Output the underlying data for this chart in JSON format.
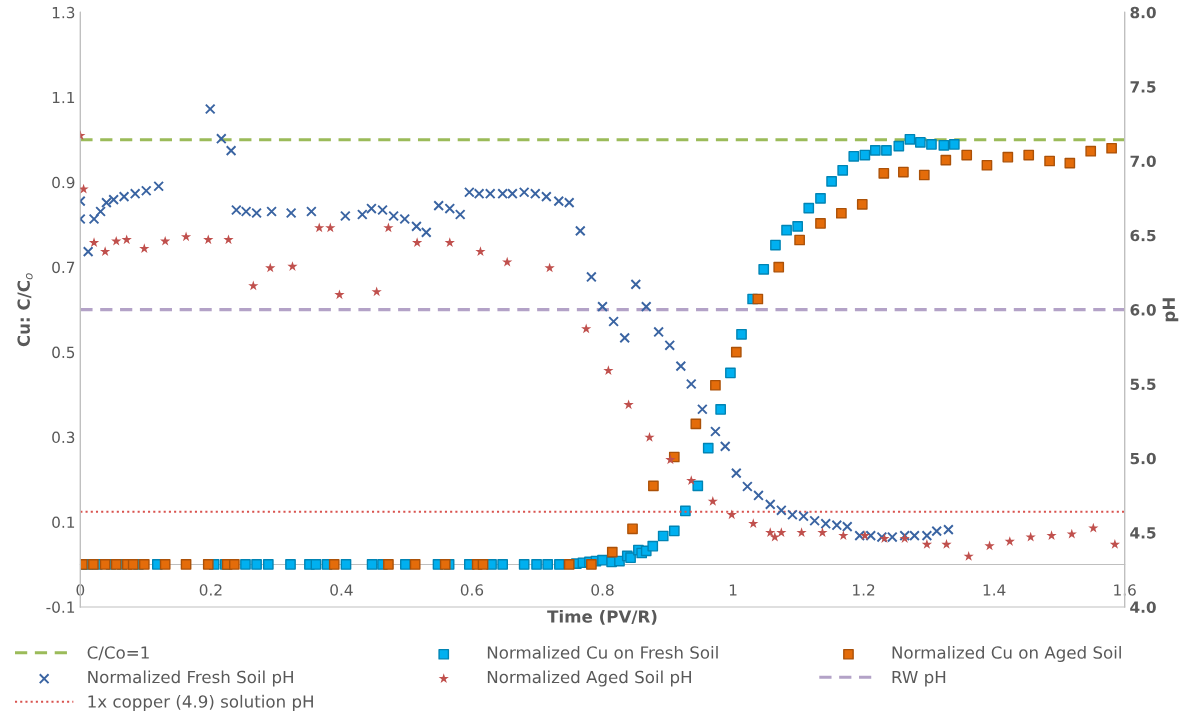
{
  "chart_data": {
    "type": "scatter",
    "xlabel": "Time (PV/R)",
    "ylabel": "Cu: C/C$_{o}$",
    "y2label": "pH",
    "xlim": [
      0,
      1.6
    ],
    "xticks": [
      0,
      0.2,
      0.4,
      0.6,
      0.8,
      1,
      1.2,
      1.4,
      1.6
    ],
    "ylim": [
      -0.1,
      1.3
    ],
    "yticks": [
      -0.1,
      0.1,
      0.3,
      0.5,
      0.7,
      0.9,
      1.1,
      1.3
    ],
    "y2lim": [
      4,
      8
    ],
    "y2ticks": [
      {
        "value": 4,
        "label": "4.0"
      },
      {
        "value": 4.5,
        "label": "4.5"
      },
      {
        "value": 5,
        "label": "5.0"
      },
      {
        "value": 5.5,
        "label": "5.5"
      },
      {
        "value": 6,
        "label": "6.0"
      },
      {
        "value": 6.5,
        "label": "6.5"
      },
      {
        "value": 7,
        "label": "7.0"
      },
      {
        "value": 7.5,
        "label": "7.5"
      },
      {
        "value": 8,
        "label": "8.0"
      }
    ],
    "grid": false,
    "legend": "bottom",
    "series": [
      {
        "name": "C/Co=1",
        "type": "line",
        "line_style": "dashed",
        "marker": "none",
        "color": "#9bbb59",
        "x": [
          0,
          1.6
        ],
        "values": [
          1,
          1
        ]
      },
      {
        "name": "Normalized Cu on Fresh Soil",
        "marker": "square",
        "color": "#00b0f0",
        "x": [
          0.003,
          0.011,
          0.026,
          0.047,
          0.064,
          0.089,
          0.118,
          0.205,
          0.222,
          0.253,
          0.27,
          0.288,
          0.322,
          0.351,
          0.361,
          0.378,
          0.407,
          0.447,
          0.463,
          0.498,
          0.548,
          0.565,
          0.596,
          0.63,
          0.647,
          0.68,
          0.699,
          0.716,
          0.734,
          0.76,
          0.77,
          0.78,
          0.79,
          0.8,
          0.814,
          0.826,
          0.838,
          0.843,
          0.855,
          0.86,
          0.867,
          0.877,
          0.893,
          0.91,
          0.927,
          0.946,
          0.962,
          0.981,
          0.996,
          1.013,
          1.03,
          1.047,
          1.065,
          1.082,
          1.099,
          1.116,
          1.134,
          1.151,
          1.168,
          1.185,
          1.202,
          1.218,
          1.235,
          1.254,
          1.271,
          1.287,
          1.304,
          1.323,
          1.339
        ],
        "values": [
          0,
          0,
          0,
          0,
          0,
          0,
          0,
          0,
          0,
          0,
          0,
          0,
          0,
          0,
          0,
          0,
          0,
          0,
          0,
          0,
          0,
          0,
          0,
          0,
          0,
          0,
          0,
          0,
          0,
          0.002,
          0.004,
          0.006,
          0.008,
          0.01,
          0.006,
          0.008,
          0.02,
          0.016,
          0.034,
          0.027,
          0.032,
          0.043,
          0.067,
          0.079,
          0.126,
          0.185,
          0.274,
          0.365,
          0.451,
          0.542,
          0.625,
          0.695,
          0.752,
          0.787,
          0.796,
          0.839,
          0.862,
          0.902,
          0.928,
          0.961,
          0.964,
          0.975,
          0.975,
          0.985,
          1.001,
          0.994,
          0.989,
          0.987,
          0.989
        ]
      },
      {
        "name": "Normalized Cu on Aged Soil",
        "marker": "square",
        "color": "#e46c0a",
        "x": [
          0.003,
          0.02,
          0.038,
          0.055,
          0.072,
          0.081,
          0.098,
          0.13,
          0.162,
          0.196,
          0.225,
          0.236,
          0.389,
          0.472,
          0.513,
          0.559,
          0.608,
          0.617,
          0.749,
          0.783,
          0.815,
          0.846,
          0.878,
          0.91,
          0.943,
          0.973,
          1.005,
          1.038,
          1.07,
          1.102,
          1.134,
          1.166,
          1.198,
          1.231,
          1.261,
          1.293,
          1.326,
          1.358,
          1.389,
          1.421,
          1.453,
          1.485,
          1.516,
          1.548,
          1.58
        ],
        "values": [
          0,
          0,
          0,
          0,
          0,
          0,
          0,
          0,
          0,
          0,
          0,
          0,
          0,
          0,
          0,
          0,
          0,
          0,
          0,
          0,
          0.029,
          0.084,
          0.185,
          0.253,
          0.331,
          0.422,
          0.5,
          0.625,
          0.7,
          0.764,
          0.803,
          0.827,
          0.848,
          0.921,
          0.924,
          0.917,
          0.952,
          0.964,
          0.94,
          0.959,
          0.964,
          0.95,
          0.945,
          0.973,
          0.98
        ]
      },
      {
        "name": "Normalized Fresh Soil pH",
        "axis": "y2",
        "marker": "cross",
        "color": "#3a64a2",
        "x": [
          0,
          0,
          0.012,
          0.021,
          0.031,
          0.04,
          0.051,
          0.067,
          0.084,
          0.101,
          0.12,
          0.199,
          0.216,
          0.231,
          0.239,
          0.254,
          0.27,
          0.293,
          0.323,
          0.354,
          0.406,
          0.432,
          0.446,
          0.463,
          0.48,
          0.497,
          0.515,
          0.53,
          0.549,
          0.566,
          0.582,
          0.596,
          0.611,
          0.628,
          0.647,
          0.662,
          0.68,
          0.697,
          0.714,
          0.733,
          0.749,
          0.766,
          0.783,
          0.8,
          0.817,
          0.834,
          0.851,
          0.867,
          0.886,
          0.903,
          0.92,
          0.936,
          0.953,
          0.973,
          0.988,
          1.005,
          1.022,
          1.039,
          1.057,
          1.074,
          1.091,
          1.108,
          1.125,
          1.142,
          1.159,
          1.175,
          1.194,
          1.211,
          1.228,
          1.244,
          1.263,
          1.278,
          1.297,
          1.312,
          1.33
        ],
        "values": [
          6.73,
          6.61,
          6.39,
          6.61,
          6.66,
          6.72,
          6.74,
          6.76,
          6.78,
          6.8,
          6.83,
          7.35,
          7.15,
          7.07,
          6.67,
          6.66,
          6.65,
          6.66,
          6.65,
          6.66,
          6.63,
          6.64,
          6.68,
          6.67,
          6.63,
          6.61,
          6.56,
          6.52,
          6.7,
          6.68,
          6.64,
          6.79,
          6.78,
          6.78,
          6.78,
          6.78,
          6.79,
          6.78,
          6.76,
          6.73,
          6.72,
          6.53,
          6.22,
          6.02,
          5.92,
          5.81,
          6.17,
          6.02,
          5.85,
          5.76,
          5.62,
          5.5,
          5.33,
          5.18,
          5.08,
          4.9,
          4.81,
          4.75,
          4.69,
          4.65,
          4.62,
          4.61,
          4.58,
          4.56,
          4.55,
          4.54,
          4.48,
          4.48,
          4.47,
          4.47,
          4.48,
          4.48,
          4.48,
          4.51,
          4.52
        ]
      },
      {
        "name": "Normalized Aged Soil pH",
        "axis": "y2",
        "marker": "star",
        "color": "#c0504d",
        "x": [
          0,
          0.005,
          0.021,
          0.038,
          0.055,
          0.071,
          0.098,
          0.13,
          0.162,
          0.196,
          0.227,
          0.265,
          0.291,
          0.325,
          0.366,
          0.383,
          0.397,
          0.454,
          0.472,
          0.516,
          0.566,
          0.613,
          0.654,
          0.719,
          0.775,
          0.809,
          0.84,
          0.872,
          0.904,
          0.936,
          0.969,
          0.998,
          1.031,
          1.057,
          1.064,
          1.074,
          1.105,
          1.137,
          1.169,
          1.202,
          1.232,
          1.263,
          1.297,
          1.327,
          1.361,
          1.393,
          1.424,
          1.456,
          1.488,
          1.519,
          1.552,
          1.585
        ],
        "values": [
          7.17,
          6.81,
          6.45,
          6.39,
          6.46,
          6.47,
          6.41,
          6.46,
          6.49,
          6.47,
          6.47,
          6.16,
          6.28,
          6.29,
          6.55,
          6.55,
          6.1,
          6.12,
          6.55,
          6.45,
          6.45,
          6.39,
          6.32,
          6.28,
          5.87,
          5.59,
          5.36,
          5.14,
          4.99,
          4.85,
          4.71,
          4.62,
          4.56,
          4.5,
          4.47,
          4.5,
          4.5,
          4.5,
          4.48,
          4.48,
          4.46,
          4.46,
          4.42,
          4.42,
          4.34,
          4.41,
          4.44,
          4.47,
          4.48,
          4.49,
          4.53,
          4.42
        ]
      },
      {
        "name": "RW pH",
        "type": "line",
        "axis": "y2",
        "line_style": "dashed",
        "marker": "none",
        "color": "#b3a2c7",
        "x": [
          0,
          1.6
        ],
        "values": [
          6,
          6
        ]
      },
      {
        "name": "1x copper (4.9) solution pH",
        "type": "line",
        "axis": "y2",
        "line_style": "dotted",
        "marker": "none",
        "color": "#d9534f",
        "x": [
          0,
          1.6
        ],
        "values": [
          4.64,
          4.64
        ]
      }
    ]
  }
}
